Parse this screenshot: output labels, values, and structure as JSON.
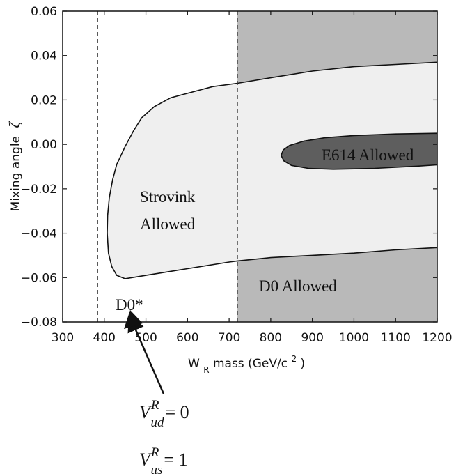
{
  "chart_data": {
    "type": "area",
    "xlabel": {
      "main": "W",
      "sub": "R",
      "rest": " mass (GeV/c",
      "sup": "2",
      "end": ")"
    },
    "ylabel": {
      "text": "Mixing angle",
      "symbol": "ζ"
    },
    "xlim": [
      300,
      1200
    ],
    "ylim": [
      -0.08,
      0.06
    ],
    "xticks": [
      300,
      400,
      500,
      600,
      700,
      800,
      900,
      1000,
      1100,
      1200
    ],
    "yticks": [
      {
        "value": 0.06,
        "label": "0.06"
      },
      {
        "value": 0.04,
        "label": "0.04"
      },
      {
        "value": 0.02,
        "label": "0.02"
      },
      {
        "value": 0.0,
        "label": "0.00"
      },
      {
        "value": -0.02,
        "label": "−0.02"
      },
      {
        "value": -0.04,
        "label": "−0.04"
      },
      {
        "value": -0.06,
        "label": "−0.06"
      },
      {
        "value": -0.08,
        "label": "−0.08"
      }
    ],
    "dashed_lines_x": [
      384,
      720
    ],
    "regions": [
      {
        "name": "D0 Allowed",
        "kind": "band",
        "x_range": [
          720,
          1200
        ],
        "color": "#b9b9b9"
      },
      {
        "name": "Strovink Allowed",
        "kind": "polygon",
        "color": "#efefef",
        "points": [
          [
            1200,
            0.037
          ],
          [
            1100,
            0.036
          ],
          [
            1000,
            0.035
          ],
          [
            900,
            0.033
          ],
          [
            800,
            0.03
          ],
          [
            720,
            0.0275
          ],
          [
            660,
            0.026
          ],
          [
            600,
            0.023
          ],
          [
            560,
            0.021
          ],
          [
            520,
            0.017
          ],
          [
            490,
            0.012
          ],
          [
            470,
            0.006
          ],
          [
            450,
            -0.001
          ],
          [
            430,
            -0.009
          ],
          [
            420,
            -0.016
          ],
          [
            412,
            -0.024
          ],
          [
            408,
            -0.032
          ],
          [
            407,
            -0.04
          ],
          [
            410,
            -0.049
          ],
          [
            418,
            -0.055
          ],
          [
            430,
            -0.059
          ],
          [
            450,
            -0.0605
          ],
          [
            500,
            -0.059
          ],
          [
            600,
            -0.056
          ],
          [
            700,
            -0.053
          ],
          [
            720,
            -0.0525
          ],
          [
            800,
            -0.051
          ],
          [
            900,
            -0.05
          ],
          [
            1000,
            -0.049
          ],
          [
            1100,
            -0.0475
          ],
          [
            1200,
            -0.0465
          ]
        ]
      },
      {
        "name": "E614 Allowed",
        "kind": "polygon",
        "color": "#5e5e5e",
        "points": [
          [
            1200,
            0.005
          ],
          [
            1100,
            0.0047
          ],
          [
            1000,
            0.004
          ],
          [
            930,
            0.003
          ],
          [
            880,
            0.0015
          ],
          [
            845,
            -0.0005
          ],
          [
            830,
            -0.0025
          ],
          [
            825,
            -0.005
          ],
          [
            832,
            -0.0075
          ],
          [
            850,
            -0.0095
          ],
          [
            890,
            -0.0108
          ],
          [
            950,
            -0.0112
          ],
          [
            1050,
            -0.0108
          ],
          [
            1150,
            -0.0098
          ],
          [
            1200,
            -0.0092
          ]
        ]
      }
    ],
    "annotations": {
      "strovink": [
        "Strovink",
        "Allowed"
      ],
      "e614": "E614 Allowed",
      "d0": "D0 Allowed",
      "d0star": "D0*"
    },
    "formula": {
      "line1": {
        "v": "V",
        "sup": "R",
        "sub": "ud",
        "rhs": "= 0"
      },
      "line2": {
        "v": "V",
        "sup": "R",
        "sub": "us",
        "rhs": "= 1"
      }
    }
  }
}
